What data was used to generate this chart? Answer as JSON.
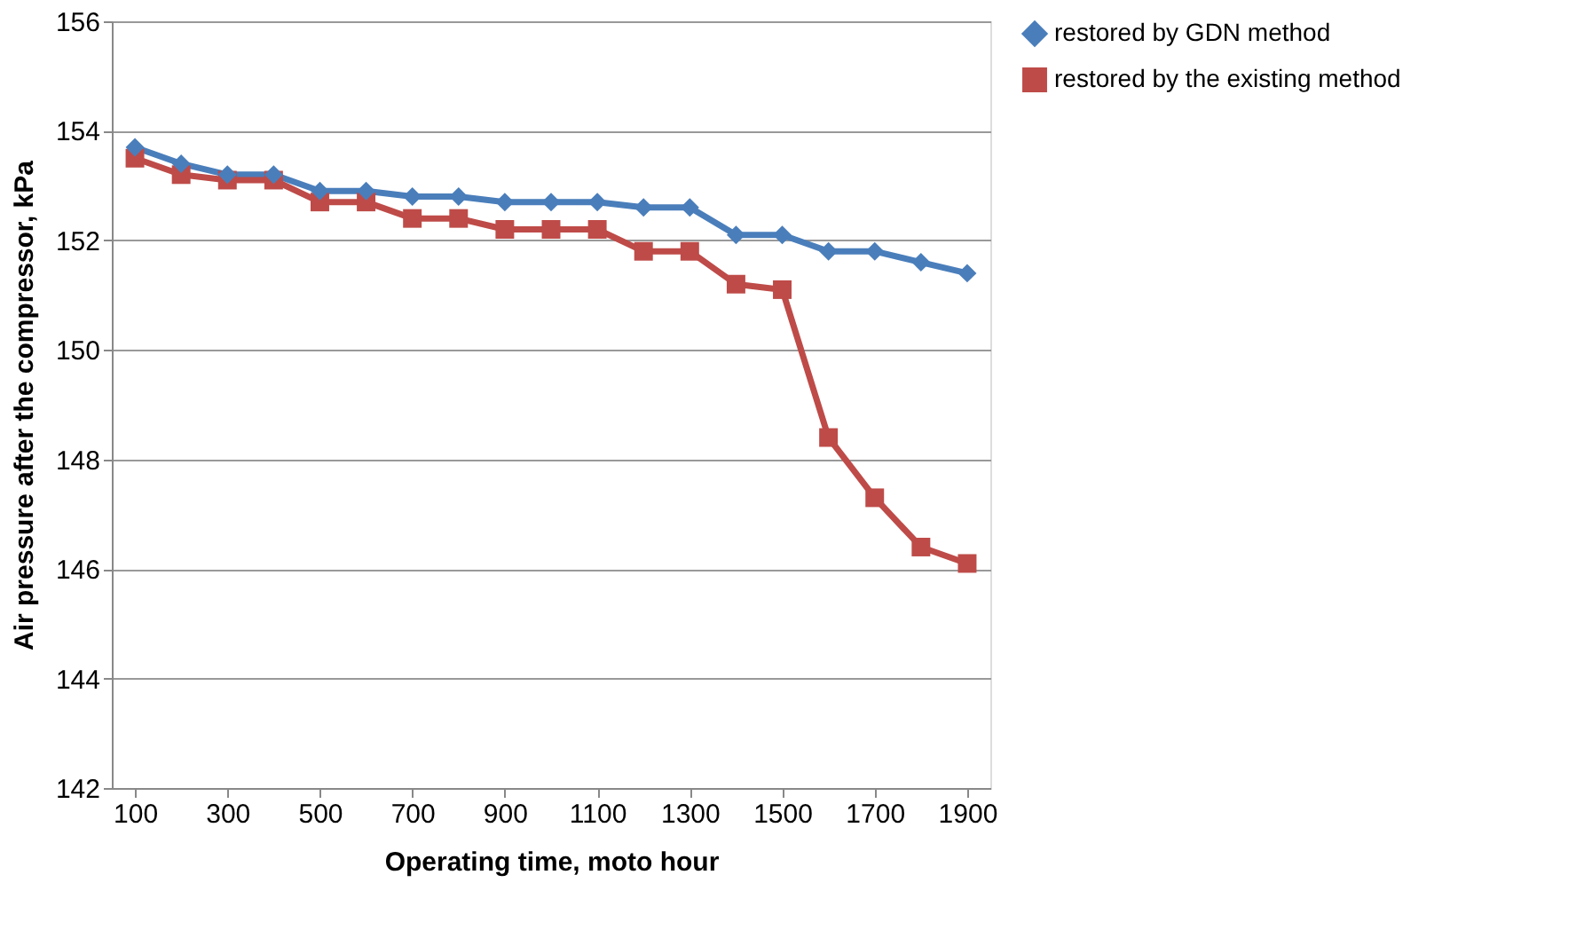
{
  "chart_data": {
    "type": "line",
    "xlabel": "Operating time, moto hour",
    "ylabel": "Air pressure after the compressor, kPa",
    "x": [
      100,
      200,
      300,
      400,
      500,
      600,
      700,
      800,
      900,
      1000,
      1100,
      1200,
      1300,
      1400,
      1500,
      1600,
      1700,
      1800,
      1900
    ],
    "series": [
      {
        "name": "restored by GDN method",
        "color": "#4a7ebb",
        "marker": "diamond",
        "values": [
          153.7,
          153.4,
          153.2,
          153.2,
          152.9,
          152.9,
          152.8,
          152.8,
          152.7,
          152.7,
          152.7,
          152.6,
          152.6,
          152.1,
          152.1,
          151.8,
          151.8,
          151.6,
          151.4
        ]
      },
      {
        "name": "restored by the existing method",
        "color": "#be4b48",
        "marker": "square",
        "values": [
          153.5,
          153.2,
          153.1,
          153.1,
          152.7,
          152.7,
          152.4,
          152.4,
          152.2,
          152.2,
          152.2,
          151.8,
          151.8,
          151.2,
          151.1,
          148.4,
          147.3,
          146.4,
          146.1
        ]
      }
    ],
    "xlim": [
      50,
      1950
    ],
    "xticks": [
      100,
      300,
      500,
      700,
      900,
      1100,
      1300,
      1500,
      1700,
      1900
    ],
    "ylim": [
      142,
      156
    ],
    "yticks": [
      142,
      144,
      146,
      148,
      150,
      152,
      154,
      156
    ],
    "grid": "y",
    "legend": "right",
    "line_style": "solid"
  }
}
